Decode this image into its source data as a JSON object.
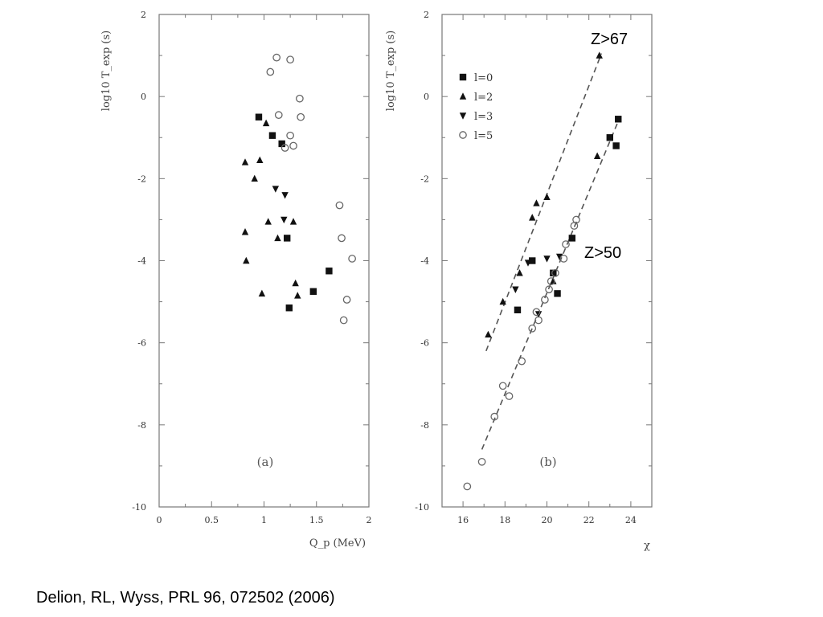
{
  "citation": "Delion, RL, Wyss, PRL 96, 072502 (2006)",
  "chart_data": [
    {
      "type": "scatter",
      "panel_label": "(a)",
      "xlabel": "Q_p (MeV)",
      "ylabel": "log10 T_exp (s)",
      "xlim": [
        0,
        2
      ],
      "ylim": [
        -10,
        2
      ],
      "xticks": [
        "0",
        "0.5",
        "1",
        "1.5",
        "2"
      ],
      "yticks": [
        "2",
        "0",
        "-2",
        "-4",
        "-6",
        "-8",
        "-10"
      ],
      "grid": false,
      "legend": "none",
      "series": [
        {
          "name": "l=0",
          "marker": "square",
          "points": [
            [
              0.95,
              -0.5
            ],
            [
              1.08,
              -0.95
            ],
            [
              1.17,
              -1.15
            ],
            [
              1.22,
              -3.45
            ],
            [
              1.24,
              -5.15
            ],
            [
              1.47,
              -4.75
            ],
            [
              1.62,
              -4.25
            ]
          ]
        },
        {
          "name": "l=2",
          "marker": "triangle-up",
          "points": [
            [
              0.82,
              -1.6
            ],
            [
              0.82,
              -3.3
            ],
            [
              0.83,
              -4.0
            ],
            [
              0.91,
              -2.0
            ],
            [
              0.96,
              -1.55
            ],
            [
              0.98,
              -4.8
            ],
            [
              1.02,
              -0.65
            ],
            [
              1.04,
              -3.05
            ],
            [
              1.13,
              -3.45
            ],
            [
              1.28,
              -3.05
            ],
            [
              1.3,
              -4.55
            ],
            [
              1.32,
              -4.85
            ]
          ]
        },
        {
          "name": "l=3",
          "marker": "triangle-down",
          "points": [
            [
              1.11,
              -2.25
            ],
            [
              1.19,
              -3.0
            ],
            [
              1.2,
              -2.4
            ]
          ]
        },
        {
          "name": "l=5",
          "marker": "circle",
          "points": [
            [
              1.06,
              0.6
            ],
            [
              1.12,
              0.95
            ],
            [
              1.14,
              -0.45
            ],
            [
              1.2,
              -1.25
            ],
            [
              1.25,
              0.9
            ],
            [
              1.25,
              -0.95
            ],
            [
              1.28,
              -1.2
            ],
            [
              1.34,
              -0.05
            ],
            [
              1.35,
              -0.5
            ],
            [
              1.72,
              -2.65
            ],
            [
              1.74,
              -3.45
            ],
            [
              1.76,
              -5.45
            ],
            [
              1.79,
              -4.95
            ],
            [
              1.84,
              -3.95
            ]
          ]
        }
      ]
    },
    {
      "type": "scatter",
      "panel_label": "(b)",
      "xlabel": "χ",
      "ylabel": "log10 T_exp (s)",
      "xlim": [
        15,
        25
      ],
      "ylim": [
        -10,
        2
      ],
      "xticks": [
        "16",
        "18",
        "20",
        "22",
        "24"
      ],
      "yticks": [
        "2",
        "0",
        "-2",
        "-4",
        "-6",
        "-8",
        "-10"
      ],
      "grid": false,
      "legend": "top-left",
      "legend_entries": [
        "l=0",
        "l=2",
        "l=3",
        "l=5"
      ],
      "annotations": [
        "Z>67",
        "Z>50"
      ],
      "lines": [
        {
          "label": "Z>67",
          "style": "dashed",
          "points": [
            [
              17.1,
              -6.2
            ],
            [
              22.6,
              1.05
            ]
          ]
        },
        {
          "label": "Z>50",
          "style": "dashed",
          "points": [
            [
              16.9,
              -8.6
            ],
            [
              23.4,
              -0.6
            ]
          ]
        }
      ],
      "series": [
        {
          "name": "l=0",
          "marker": "square",
          "points": [
            [
              18.6,
              -5.2
            ],
            [
              19.3,
              -4.0
            ],
            [
              20.3,
              -4.3
            ],
            [
              20.5,
              -4.8
            ],
            [
              21.2,
              -3.45
            ],
            [
              23.0,
              -1.0
            ],
            [
              23.3,
              -1.2
            ],
            [
              23.4,
              -0.55
            ]
          ]
        },
        {
          "name": "l=2",
          "marker": "triangle-up",
          "points": [
            [
              17.2,
              -5.8
            ],
            [
              17.9,
              -5.0
            ],
            [
              18.7,
              -4.3
            ],
            [
              19.3,
              -2.95
            ],
            [
              19.5,
              -2.6
            ],
            [
              20.0,
              -2.45
            ],
            [
              20.3,
              -4.5
            ],
            [
              22.4,
              -1.45
            ],
            [
              22.5,
              1.0
            ]
          ]
        },
        {
          "name": "l=3",
          "marker": "triangle-down",
          "points": [
            [
              18.5,
              -4.7
            ],
            [
              19.1,
              -4.05
            ],
            [
              19.6,
              -5.3
            ],
            [
              20.0,
              -3.95
            ],
            [
              20.6,
              -3.9
            ]
          ]
        },
        {
          "name": "l=5",
          "marker": "circle",
          "points": [
            [
              16.2,
              -9.5
            ],
            [
              16.9,
              -8.9
            ],
            [
              17.5,
              -7.8
            ],
            [
              17.9,
              -7.05
            ],
            [
              18.2,
              -7.3
            ],
            [
              18.8,
              -6.45
            ],
            [
              19.3,
              -5.65
            ],
            [
              19.5,
              -5.25
            ],
            [
              19.6,
              -5.45
            ],
            [
              19.9,
              -4.95
            ],
            [
              20.1,
              -4.7
            ],
            [
              20.2,
              -4.5
            ],
            [
              20.4,
              -4.3
            ],
            [
              20.8,
              -3.95
            ],
            [
              20.9,
              -3.6
            ],
            [
              21.3,
              -3.15
            ],
            [
              21.4,
              -3.0
            ]
          ]
        }
      ]
    }
  ]
}
